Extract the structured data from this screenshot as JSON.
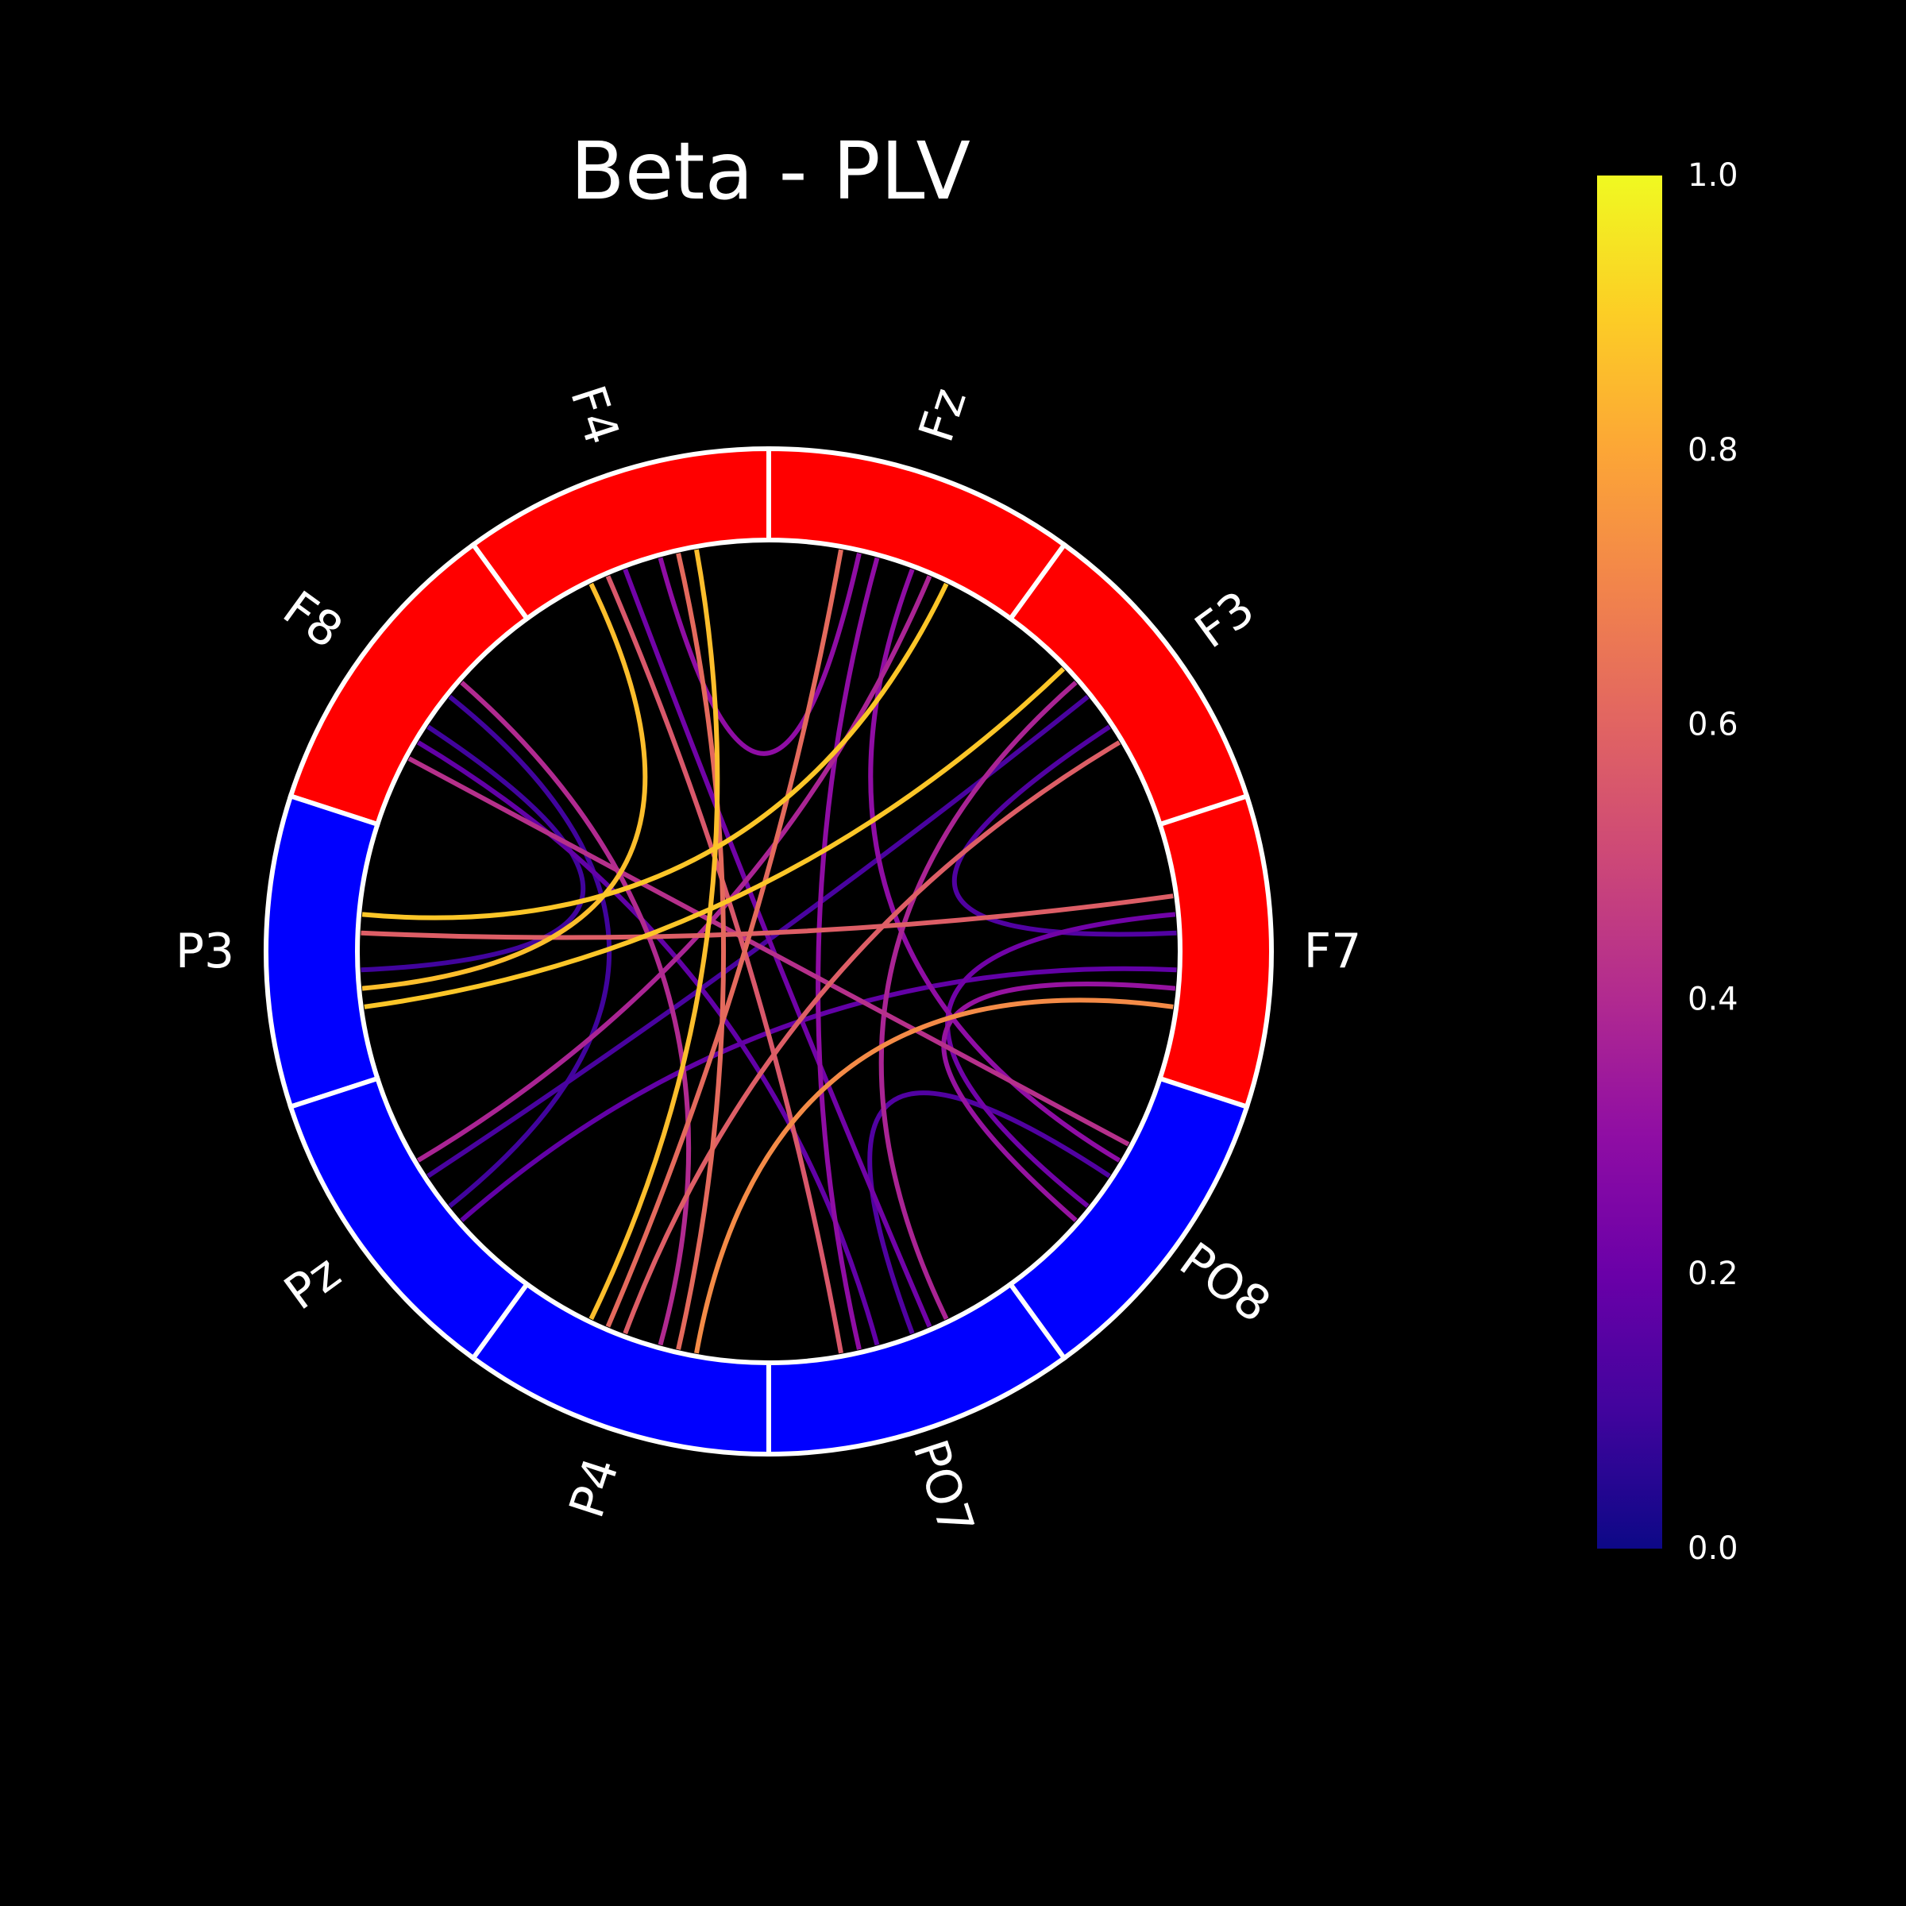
{
  "chart_data": {
    "type": "connectivity-circle",
    "title": "Beta - PLV",
    "nodes": [
      {
        "label": "F7",
        "group": "frontal"
      },
      {
        "label": "F3",
        "group": "frontal"
      },
      {
        "label": "Fz",
        "group": "frontal"
      },
      {
        "label": "F4",
        "group": "frontal"
      },
      {
        "label": "F8",
        "group": "frontal"
      },
      {
        "label": "P3",
        "group": "parietal"
      },
      {
        "label": "Pz",
        "group": "parietal"
      },
      {
        "label": "P4",
        "group": "parietal"
      },
      {
        "label": "PO7",
        "group": "parietal"
      },
      {
        "label": "PO8",
        "group": "parietal"
      }
    ],
    "group_colors": {
      "frontal": "#ff0000",
      "parietal": "#0000ff"
    },
    "connections": [
      {
        "source": "F4",
        "target": "P3",
        "value": 0.86
      },
      {
        "source": "F4",
        "target": "P4",
        "value": 0.86
      },
      {
        "source": "F4",
        "target": "P4",
        "value": 0.62
      },
      {
        "source": "F4",
        "target": "PO7",
        "value": 0.56
      },
      {
        "source": "F4",
        "target": "PO7",
        "value": 0.22
      },
      {
        "source": "Fz",
        "target": "P3",
        "value": 0.88
      },
      {
        "source": "Fz",
        "target": "Pz",
        "value": 0.38
      },
      {
        "source": "Fz",
        "target": "P4",
        "value": 0.62
      },
      {
        "source": "Fz",
        "target": "PO7",
        "value": 0.3
      },
      {
        "source": "Fz",
        "target": "PO8",
        "value": 0.3
      },
      {
        "source": "F3",
        "target": "P3",
        "value": 0.88
      },
      {
        "source": "F3",
        "target": "Pz",
        "value": 0.12
      },
      {
        "source": "F3",
        "target": "P4",
        "value": 0.58
      },
      {
        "source": "F3",
        "target": "PO7",
        "value": 0.38
      },
      {
        "source": "F7",
        "target": "P3",
        "value": 0.58
      },
      {
        "source": "F7",
        "target": "Pz",
        "value": 0.18
      },
      {
        "source": "F7",
        "target": "P4",
        "value": 0.72
      },
      {
        "source": "F7",
        "target": "PO8",
        "value": 0.22
      },
      {
        "source": "F7",
        "target": "PO8",
        "value": 0.32
      },
      {
        "source": "F8",
        "target": "P3",
        "value": 0.1
      },
      {
        "source": "F8",
        "target": "Pz",
        "value": 0.1
      },
      {
        "source": "F8",
        "target": "P4",
        "value": 0.4
      },
      {
        "source": "F8",
        "target": "PO7",
        "value": 0.18
      },
      {
        "source": "F8",
        "target": "PO8",
        "value": 0.42
      },
      {
        "source": "Fz",
        "target": "F4",
        "value": 0.3
      },
      {
        "source": "F3",
        "target": "F7",
        "value": 0.14
      },
      {
        "source": "PO7",
        "target": "PO8",
        "value": 0.14
      }
    ],
    "colorbar": {
      "colormap": "plasma",
      "vmin": 0.0,
      "vmax": 1.0,
      "ticks": [
        "0.0",
        "0.2",
        "0.4",
        "0.6",
        "0.8",
        "1.0"
      ]
    },
    "background": "#000000"
  }
}
